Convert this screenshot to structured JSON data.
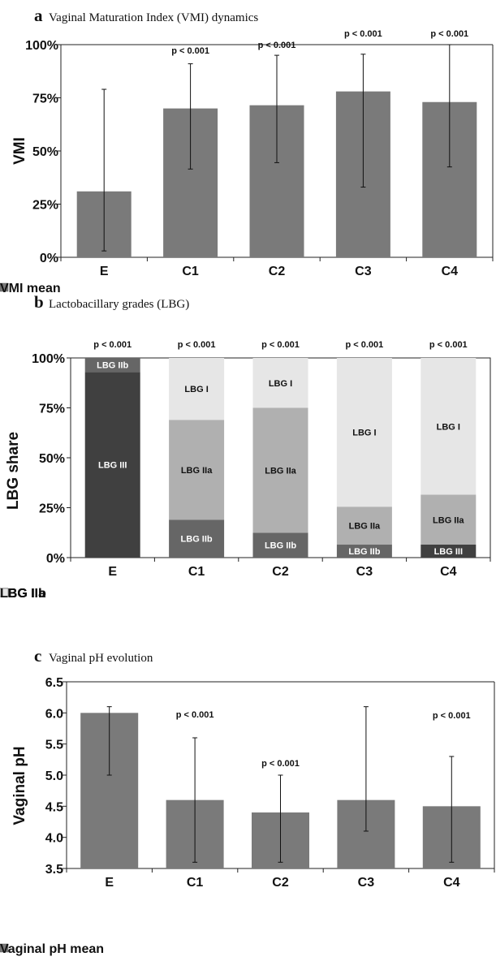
{
  "panels": [
    {
      "letter": "a",
      "title": "Vaginal Maturation Index (VMI) dynamics"
    },
    {
      "letter": "b",
      "title": "Lactobacillary grades (LBG)"
    },
    {
      "letter": "c",
      "title": "Vaginal pH evolution"
    }
  ],
  "colors": {
    "bar": "#7a7a7a",
    "LBG III": "#404040",
    "LBG IIb": "#666666",
    "LBG IIa": "#b0b0b0",
    "LBG I": "#e6e6e6"
  },
  "chart_data": [
    {
      "type": "bar",
      "title": "Vaginal Maturation Index (VMI) dynamics",
      "categories": [
        "E",
        "C1",
        "C2",
        "C3",
        "C4"
      ],
      "ylabel": "VMI",
      "xlabel": "",
      "ylim": [
        0,
        100
      ],
      "yticks": [
        "0%",
        "25%",
        "50%",
        "75%",
        "100%"
      ],
      "series": [
        {
          "name": "VMI mean",
          "values": [
            31,
            70,
            71.5,
            78,
            73
          ]
        }
      ],
      "error_bars": {
        "low": [
          3,
          41.5,
          44.5,
          33,
          42.5
        ],
        "high": [
          79,
          91,
          95,
          95.5,
          100
        ]
      },
      "annotations": [
        "",
        "p < 0.001",
        "p < 0.001",
        "p < 0.001",
        "p < 0.001"
      ],
      "legend": [
        "VMI mean"
      ],
      "legend_position": "bottom"
    },
    {
      "type": "bar",
      "stacked": true,
      "title": "Lactobacillary grades (LBG)",
      "categories": [
        "E",
        "C1",
        "C2",
        "C3",
        "C4"
      ],
      "ylabel": "LBG share",
      "xlabel": "",
      "ylim": [
        0,
        100
      ],
      "yticks": [
        "0%",
        "25%",
        "50%",
        "75%",
        "100%"
      ],
      "series": [
        {
          "name": "LBG III",
          "values": [
            93,
            0,
            0,
            0,
            6.5
          ],
          "labels": [
            "LBG III",
            "",
            "",
            "",
            "LBG III"
          ]
        },
        {
          "name": "LBG IIb",
          "values": [
            7,
            19,
            12.5,
            6.5,
            0
          ],
          "labels": [
            "LBG IIb",
            "LBG IIb",
            "LBG IIb",
            "LBG IIb",
            ""
          ]
        },
        {
          "name": "LBG IIa",
          "values": [
            0,
            50,
            62.5,
            19,
            25
          ],
          "labels": [
            "",
            "LBG IIa",
            "LBG IIa",
            "LBG IIa",
            "LBG IIa"
          ]
        },
        {
          "name": "LBG I",
          "values": [
            0,
            31,
            25,
            74.5,
            68.5
          ],
          "labels": [
            "",
            "LBG I",
            "LBG I",
            "LBG I",
            "LBG I"
          ]
        }
      ],
      "annotations": [
        "p < 0.001",
        "p < 0.001",
        "p < 0.001",
        "p < 0.001",
        "p < 0.001"
      ],
      "legend": [
        "LBG III",
        "LBG IIb",
        "LBG IIa",
        "LBG I"
      ],
      "legend_position": "bottom"
    },
    {
      "type": "bar",
      "title": "Vaginal pH evolution",
      "categories": [
        "E",
        "C1",
        "C2",
        "C3",
        "C4"
      ],
      "ylabel": "Vaginal pH",
      "xlabel": "",
      "ylim": [
        3.5,
        6.5
      ],
      "yticks": [
        "3.5",
        "4.0",
        "4.5",
        "5.0",
        "5.5",
        "6.0",
        "6.5"
      ],
      "series": [
        {
          "name": "Vaginal pH mean",
          "values": [
            6.0,
            4.6,
            4.4,
            4.6,
            4.5
          ]
        }
      ],
      "error_bars": {
        "low": [
          5.0,
          3.6,
          3.6,
          4.1,
          3.6
        ],
        "high": [
          6.1,
          5.6,
          5.0,
          6.1,
          5.3
        ]
      },
      "annotations": [
        "",
        "p < 0.001",
        "p < 0.001",
        "",
        "p < 0.001"
      ],
      "legend": [
        "Vaginal pH mean"
      ],
      "legend_position": "bottom"
    }
  ]
}
